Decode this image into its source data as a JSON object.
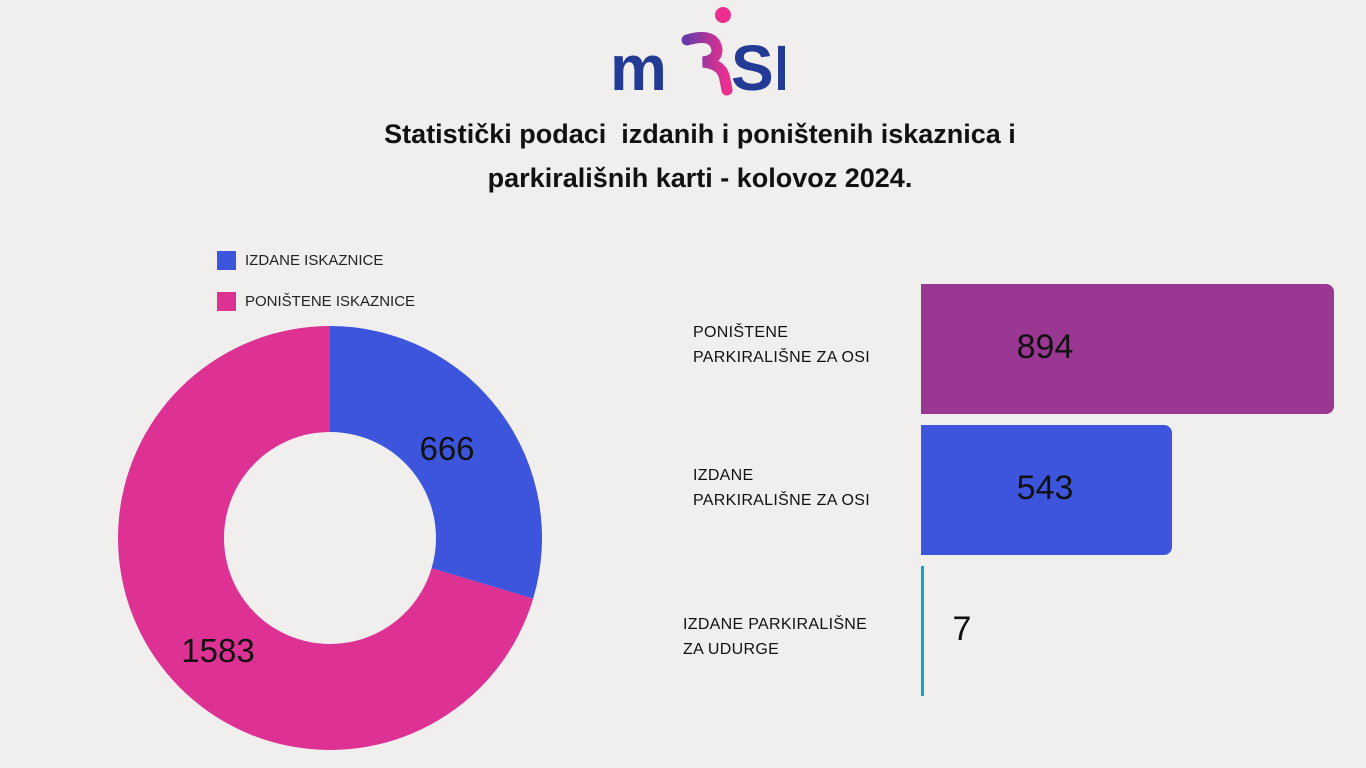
{
  "logo": {
    "text": "mosi"
  },
  "title": {
    "line1": "Statistički podaci  izdanih i poništenih iskaznica i",
    "line2": "parkirališnih karti - kolovoz 2024."
  },
  "colors": {
    "blue": "#3c55dc",
    "pink": "#de3194",
    "purple": "#9a3792",
    "teal": "#1aa0c8"
  },
  "chart_data": [
    {
      "type": "pie",
      "subtype": "donut",
      "legend_position": "top-left",
      "categories": [
        "IZDANE ISKAZNICE",
        "PONIŠTENE ISKAZNICE"
      ],
      "values": [
        666,
        1583
      ],
      "value_labels": [
        "666",
        "1583"
      ],
      "colors": [
        "#3c55dc",
        "#de3194"
      ]
    },
    {
      "type": "bar",
      "orientation": "horizontal",
      "categories": [
        "PONIŠTENE PARKIRALIŠNE ZA OSI",
        "IZDANE PARKIRALIŠNE ZA OSI",
        "IZDANE PARKIRALIŠNE ZA UDURGE"
      ],
      "category_lines": [
        [
          "PONIŠTENE",
          "PARKIRALIŠNE ZA OSI"
        ],
        [
          "IZDANE",
          "PARKIRALIŠNE ZA OSI"
        ],
        [
          "IZDANE PARKIRALIŠNE",
          "ZA UDURGE"
        ]
      ],
      "values": [
        894,
        543,
        7
      ],
      "value_labels": [
        "894",
        "543",
        "7"
      ],
      "colors": [
        "#9a3792",
        "#3c55dc",
        "#1aa0c8"
      ],
      "xlim": [
        0,
        894
      ]
    }
  ]
}
